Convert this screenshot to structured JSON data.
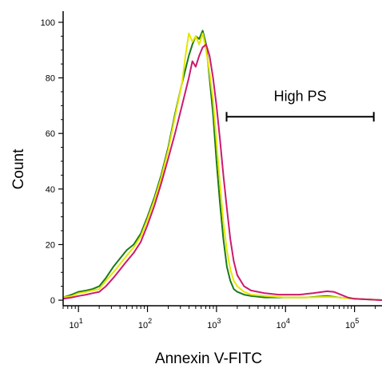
{
  "chart_data": {
    "type": "line",
    "xlabel": "Annexin V-FITC",
    "ylabel": "Count",
    "xscale": "log",
    "xlim": [
      6,
      250000
    ],
    "ylim": [
      -2,
      104
    ],
    "y_ticks": [
      {
        "value": 0,
        "label": "0"
      },
      {
        "value": 20,
        "label": "20"
      },
      {
        "value": 40,
        "label": "40"
      },
      {
        "value": 60,
        "label": "60"
      },
      {
        "value": 80,
        "label": "80"
      },
      {
        "value": 100,
        "label": "100"
      }
    ],
    "x_ticks": [
      {
        "value": 10,
        "base": "10",
        "exp": "1"
      },
      {
        "value": 100,
        "base": "10",
        "exp": "2"
      },
      {
        "value": 1000,
        "base": "10",
        "exp": "3"
      },
      {
        "value": 10000,
        "base": "10",
        "exp": "4"
      },
      {
        "value": 100000,
        "base": "10",
        "exp": "5"
      }
    ],
    "grid": false,
    "series": [
      {
        "color": "#1a7a1a",
        "points": [
          [
            6,
            1
          ],
          [
            8,
            2
          ],
          [
            10,
            3
          ],
          [
            13,
            3.5
          ],
          [
            16,
            4
          ],
          [
            20,
            5
          ],
          [
            25,
            8
          ],
          [
            32,
            12
          ],
          [
            40,
            15
          ],
          [
            50,
            18
          ],
          [
            63,
            20
          ],
          [
            80,
            24
          ],
          [
            100,
            30
          ],
          [
            126,
            37
          ],
          [
            158,
            45
          ],
          [
            200,
            55
          ],
          [
            251,
            67
          ],
          [
            316,
            78
          ],
          [
            398,
            88
          ],
          [
            447,
            92
          ],
          [
            500,
            95
          ],
          [
            562,
            94
          ],
          [
            631,
            97
          ],
          [
            708,
            92
          ],
          [
            794,
            80
          ],
          [
            891,
            67
          ],
          [
            1000,
            50
          ],
          [
            1122,
            35
          ],
          [
            1259,
            22
          ],
          [
            1413,
            12
          ],
          [
            1585,
            7
          ],
          [
            1778,
            4
          ],
          [
            2000,
            3
          ],
          [
            2512,
            2
          ],
          [
            3162,
            1.5
          ],
          [
            5012,
            1
          ],
          [
            10000,
            1
          ],
          [
            20000,
            1
          ],
          [
            40000,
            1.5
          ],
          [
            60000,
            1
          ],
          [
            100000,
            0.5
          ],
          [
            250000,
            0
          ]
        ]
      },
      {
        "color": "#e6e600",
        "points": [
          [
            6,
            1
          ],
          [
            8,
            1.5
          ],
          [
            10,
            2.5
          ],
          [
            13,
            3
          ],
          [
            16,
            3.5
          ],
          [
            20,
            4
          ],
          [
            25,
            7
          ],
          [
            32,
            10
          ],
          [
            40,
            13
          ],
          [
            50,
            16
          ],
          [
            63,
            19
          ],
          [
            80,
            23
          ],
          [
            100,
            29
          ],
          [
            126,
            36
          ],
          [
            158,
            44
          ],
          [
            200,
            54
          ],
          [
            251,
            66
          ],
          [
            316,
            78
          ],
          [
            355,
            88
          ],
          [
            398,
            96
          ],
          [
            447,
            93
          ],
          [
            500,
            95
          ],
          [
            562,
            92
          ],
          [
            631,
            96
          ],
          [
            708,
            90
          ],
          [
            794,
            82
          ],
          [
            891,
            72
          ],
          [
            1000,
            57
          ],
          [
            1122,
            42
          ],
          [
            1259,
            28
          ],
          [
            1413,
            18
          ],
          [
            1585,
            11
          ],
          [
            1778,
            7
          ],
          [
            2000,
            5
          ],
          [
            2512,
            3
          ],
          [
            3162,
            2
          ],
          [
            5012,
            1.5
          ],
          [
            10000,
            1
          ],
          [
            20000,
            1
          ],
          [
            40000,
            1.2
          ],
          [
            60000,
            1
          ],
          [
            100000,
            0.5
          ],
          [
            250000,
            0
          ]
        ]
      },
      {
        "color": "#cc1a6e",
        "points": [
          [
            6,
            0.5
          ],
          [
            8,
            1
          ],
          [
            10,
            1.5
          ],
          [
            13,
            2
          ],
          [
            16,
            2.5
          ],
          [
            20,
            3
          ],
          [
            25,
            5
          ],
          [
            32,
            8
          ],
          [
            40,
            11
          ],
          [
            50,
            14
          ],
          [
            63,
            17
          ],
          [
            80,
            21
          ],
          [
            100,
            27
          ],
          [
            126,
            34
          ],
          [
            158,
            42
          ],
          [
            200,
            51
          ],
          [
            251,
            60
          ],
          [
            316,
            70
          ],
          [
            398,
            80
          ],
          [
            447,
            86
          ],
          [
            500,
            84
          ],
          [
            562,
            88
          ],
          [
            631,
            91
          ],
          [
            708,
            92
          ],
          [
            794,
            88
          ],
          [
            891,
            80
          ],
          [
            1000,
            70
          ],
          [
            1122,
            58
          ],
          [
            1259,
            45
          ],
          [
            1413,
            33
          ],
          [
            1585,
            22
          ],
          [
            1778,
            14
          ],
          [
            2000,
            9
          ],
          [
            2512,
            5
          ],
          [
            3162,
            3.5
          ],
          [
            4000,
            3
          ],
          [
            5012,
            2.5
          ],
          [
            7943,
            2
          ],
          [
            10000,
            2
          ],
          [
            15849,
            2
          ],
          [
            25119,
            2.5
          ],
          [
            39811,
            3.2
          ],
          [
            50119,
            3
          ],
          [
            63096,
            2
          ],
          [
            79433,
            1
          ],
          [
            100000,
            0.5
          ],
          [
            250000,
            0
          ]
        ]
      }
    ],
    "annotation": {
      "label": "High PS",
      "x_start": 1400,
      "x_end": 190000,
      "y": 66
    }
  }
}
